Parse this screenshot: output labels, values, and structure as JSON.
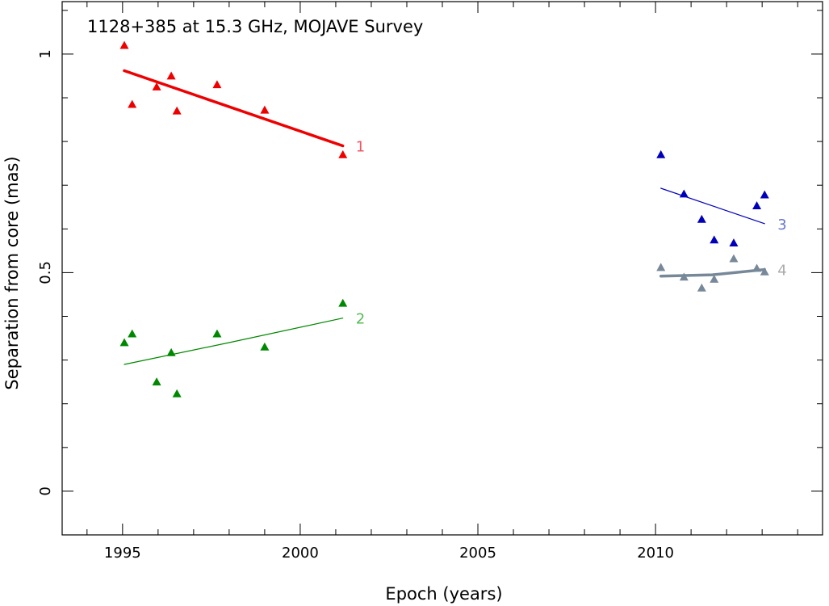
{
  "chart_data": {
    "type": "scatter",
    "title": "1128+385 at 15.3 GHz, MOJAVE Survey",
    "xlabel": "Epoch (years)",
    "ylabel": "Separation from core (mas)",
    "xlim": [
      1993.3,
      2014.7
    ],
    "ylim": [
      -0.1,
      1.12
    ],
    "x_ticks": [
      1995,
      2000,
      2005,
      2010
    ],
    "x_tick_labels": [
      "1995",
      "2000",
      "2005",
      "2010"
    ],
    "y_ticks": [
      0,
      0.5,
      1
    ],
    "y_tick_labels": [
      "0",
      "0.5",
      "1"
    ],
    "series": [
      {
        "name": "1",
        "color": "#ee0000",
        "label_color": "#ee5566",
        "points": [
          [
            1995.05,
            1.02
          ],
          [
            1995.27,
            0.885
          ],
          [
            1995.96,
            0.925
          ],
          [
            1996.37,
            0.95
          ],
          [
            1996.53,
            0.87
          ],
          [
            1997.66,
            0.93
          ],
          [
            1999.0,
            0.872
          ],
          [
            2001.2,
            0.77
          ]
        ],
        "fit": [
          [
            1995.05,
            0.962
          ],
          [
            2001.2,
            0.79
          ]
        ],
        "fit_width": 3.5
      },
      {
        "name": "2",
        "color": "#008800",
        "label_color": "#55bb55",
        "points": [
          [
            1995.05,
            0.34
          ],
          [
            1995.27,
            0.36
          ],
          [
            1995.96,
            0.25
          ],
          [
            1996.37,
            0.317
          ],
          [
            1996.53,
            0.223
          ],
          [
            1997.66,
            0.36
          ],
          [
            1999.0,
            0.33
          ],
          [
            2001.2,
            0.43
          ]
        ],
        "fit": [
          [
            1995.05,
            0.29
          ],
          [
            1998.0,
            0.34
          ],
          [
            2001.2,
            0.396
          ]
        ],
        "fit_width": 1.2
      },
      {
        "name": "3",
        "color": "#0000bb",
        "label_color": "#6677cc",
        "points": [
          [
            2010.15,
            0.77
          ],
          [
            2010.8,
            0.68
          ],
          [
            2011.3,
            0.622
          ],
          [
            2011.65,
            0.575
          ],
          [
            2012.2,
            0.568
          ],
          [
            2012.85,
            0.653
          ],
          [
            2013.07,
            0.678
          ]
        ],
        "fit": [
          [
            2010.15,
            0.693
          ],
          [
            2013.07,
            0.612
          ]
        ],
        "fit_width": 1.2
      },
      {
        "name": "4",
        "color": "#778899",
        "label_color": "#aaaaaa",
        "points": [
          [
            2010.15,
            0.512
          ],
          [
            2010.8,
            0.49
          ],
          [
            2011.3,
            0.465
          ],
          [
            2011.65,
            0.485
          ],
          [
            2012.2,
            0.532
          ],
          [
            2012.85,
            0.51
          ],
          [
            2013.07,
            0.502
          ]
        ],
        "fit": [
          [
            2010.15,
            0.492
          ],
          [
            2011.6,
            0.495
          ],
          [
            2013.07,
            0.507
          ]
        ],
        "fit_width": 3.5
      }
    ]
  }
}
